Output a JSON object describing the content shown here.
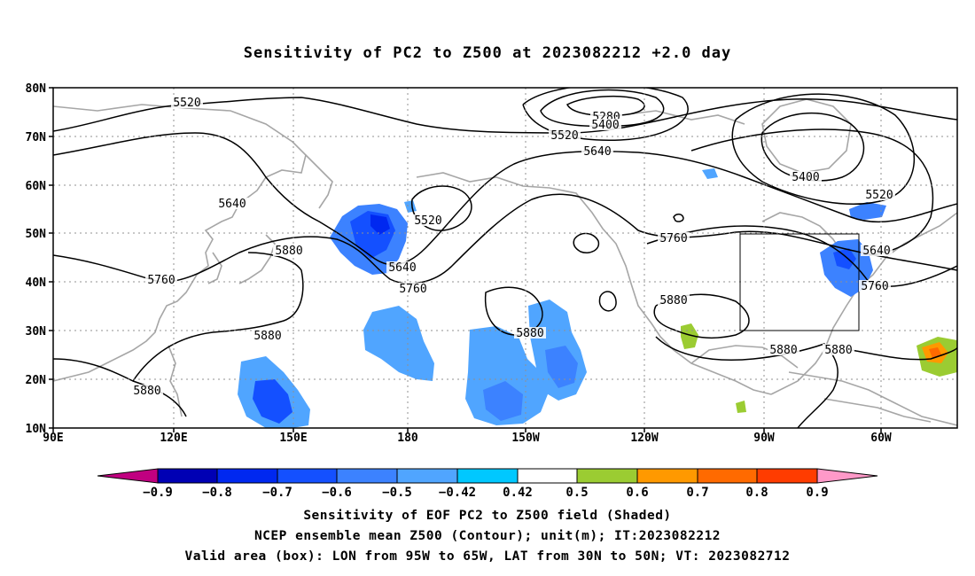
{
  "title": "Sensitivity of PC2 to Z500 at 2023082212 +2.0 day",
  "map": {
    "lat_labels": [
      "80N",
      "70N",
      "60N",
      "50N",
      "40N",
      "30N",
      "20N",
      "10N"
    ],
    "lon_labels": [
      "90E",
      "120E",
      "150E",
      "180",
      "150W",
      "120W",
      "90W",
      "60W"
    ],
    "contour_labels": [
      {
        "text": "5520"
      },
      {
        "text": "5280"
      },
      {
        "text": "5400"
      },
      {
        "text": "5520"
      },
      {
        "text": "5640"
      },
      {
        "text": "5400"
      },
      {
        "text": "5520"
      },
      {
        "text": "5640"
      },
      {
        "text": "5520"
      },
      {
        "text": "5640"
      },
      {
        "text": "5760"
      },
      {
        "text": "5880"
      },
      {
        "text": "5760"
      },
      {
        "text": "5760"
      },
      {
        "text": "5640"
      },
      {
        "text": "5760"
      },
      {
        "text": "5880"
      },
      {
        "text": "5880"
      },
      {
        "text": "5880"
      },
      {
        "text": "5880"
      },
      {
        "text": "5880"
      },
      {
        "text": "5880"
      }
    ],
    "valid_box": {
      "lon": [
        "95W",
        "65W"
      ],
      "lat": [
        "30N",
        "50N"
      ]
    }
  },
  "colorbar": {
    "labels": [
      "−0.9",
      "−0.8",
      "−0.7",
      "−0.6",
      "−0.5",
      "−0.42",
      "0.42",
      "0.5",
      "0.6",
      "0.7",
      "0.8",
      "0.9"
    ],
    "colors": [
      "#c00080",
      "#0000b4",
      "#0028f0",
      "#1450ff",
      "#3c82ff",
      "#50a5ff",
      "#00c8ff",
      "#ffffff",
      "#9bcc32",
      "#ff9900",
      "#ff6a00",
      "#ff3c00",
      "#ff0000",
      "#ff99c8"
    ]
  },
  "captions": {
    "line1": "Sensitivity of EOF PC2 to Z500 field (Shaded)",
    "line2": "NCEP ensemble mean Z500 (Contour); unit(m); IT:2023082212",
    "line3": "Valid area (box): LON from 95W to 65W, LAT from 30N to 50N; VT: 2023082712"
  }
}
